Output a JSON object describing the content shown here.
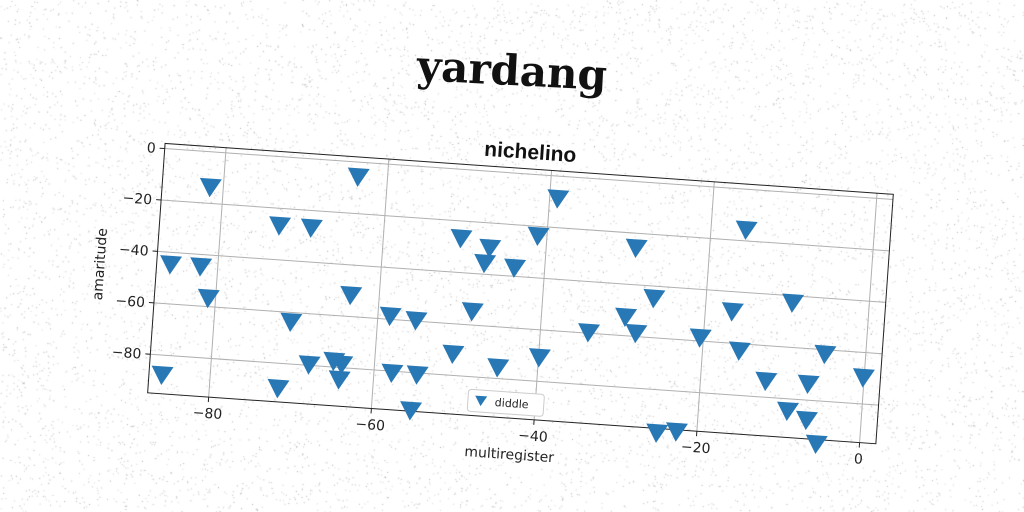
{
  "chart_data": {
    "type": "scatter",
    "title": "yardang",
    "subtitle": "nichelino",
    "xlabel": "multiregister",
    "ylabel": "amaritude",
    "xlim": [
      -87.5,
      2.0
    ],
    "ylim": [
      -95,
      2
    ],
    "xticks": [
      -80,
      -60,
      -40,
      -20,
      0
    ],
    "yticks": [
      0,
      -20,
      -40,
      -60,
      -80
    ],
    "xtick_labels": [
      "−80",
      "−60",
      "−40",
      "−20",
      "0"
    ],
    "ytick_labels": [
      "0",
      "−20",
      "−40",
      "−60",
      "−80"
    ],
    "grid": true,
    "legend_position": "bottom-center",
    "marker": "triangle-down",
    "color": "#2878b5",
    "series": [
      {
        "name": "diddle",
        "x": [
          -63.6,
          -39.0,
          -81.6,
          -15.7,
          -72.8,
          -68.9,
          -50.5,
          -46.9,
          -41.1,
          -29.0,
          -47.4,
          -43.7,
          -85.8,
          -82.1,
          -9.4,
          -80.9,
          -63.5,
          -48.5,
          -58.5,
          -55.3,
          -34.1,
          -29.7,
          -26.4,
          -28.3,
          -20.4,
          -16.7,
          -15.5,
          -5.0,
          -0.1,
          -70.6,
          -68.0,
          -65.0,
          -64.0,
          -64.2,
          -57.8,
          -54.7,
          -50.5,
          -44.9,
          -39.9,
          -12.0,
          -6.8,
          -85.9,
          -71.6,
          -55.2,
          -24.9,
          -22.5,
          -9.1,
          -6.7,
          -5.3
        ],
        "y": [
          -6,
          -9,
          -14,
          -16,
          -27,
          -27,
          -27,
          -30,
          -24,
          -26,
          -36,
          -37,
          -45,
          -45,
          -43,
          -57,
          -52,
          -55,
          -59,
          -60,
          -60,
          -53,
          -45,
          -59,
          -59,
          -48,
          -63,
          -62,
          -70,
          -64,
          -80,
          -78,
          -79,
          -85,
          -81,
          -81,
          -72,
          -76,
          -71,
          -74,
          -74,
          -88,
          -90,
          -95,
          -97,
          -96,
          -85,
          -88,
          -97
        ]
      }
    ]
  }
}
